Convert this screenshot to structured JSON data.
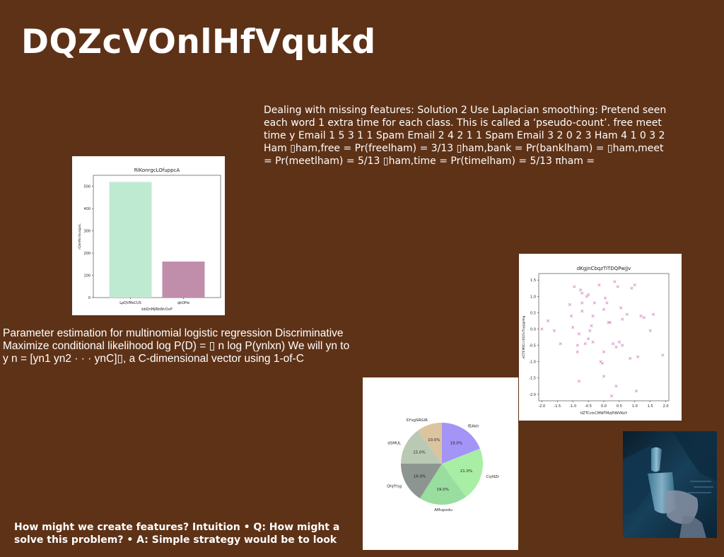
{
  "slide": {
    "title": "DQZcVOnlHfVqukd",
    "text_blocks": [
      "Dealing with missing features: Solution 2 Use Laplacian smoothing: Pretend seen each word 1 extra time for each class. This is called a ‘pseudo-count’. free meet time y Email 1 5 3 1 1 Spam Email 2 4 2 1 1 Spam Email 3 2 0 2 3 Ham 4 1 0 3 2 Ham ▯ham,free = Pr(freelham) = 3/13 ▯ham,bank = Pr(banklham) = ▯ham,meet = Pr(meetlham) = 5/13 ▯ham,time = Pr(timelham) = 5/13 πham =",
      "Parameter estimation for multinomial logistic regression Discriminative Maximize conditional likelihood log P(D) = ▯ n log P(ynlxn) We will yn to y n = [yn1 yn2 · · · ynC]▯, a C-dimensional vector using 1-of-C",
      "How might we create features? Intuition • Q: How might a solve this problem? • A: Simple strategy would be to look"
    ]
  },
  "chart_data": [
    {
      "type": "bar",
      "title": "RlKonrgcLOfuppcA",
      "xlabel": "bbQnMjRbWcOvP",
      "ylabel": "rQkHNcrbvaJpsL",
      "categories": [
        "LpQVMsCUS",
        "qkOPw"
      ],
      "values": [
        520,
        162
      ],
      "colors": [
        "#bfead2",
        "#c08dab"
      ],
      "ylim": [
        0,
        550
      ],
      "yticks": [
        0,
        100,
        200,
        300,
        400,
        500
      ]
    },
    {
      "type": "scatter",
      "title": "dKgjnCbqzTiTDQPwjJv",
      "xlabel": "tIZTCctcCMWTMzjPiWVKoY",
      "ylabel": "eQTEMKCcrXSOvTrvpJgHng",
      "marker": "x",
      "color": "#d98fc8",
      "xlim": [
        -2.1,
        2.1
      ],
      "ylim": [
        -2.2,
        1.7
      ],
      "xticks": [
        -2.0,
        -1.5,
        -1.0,
        -0.5,
        0.0,
        0.5,
        1.0,
        1.5,
        2.0
      ],
      "yticks": [
        -2.0,
        -1.5,
        -1.0,
        -0.5,
        0.0,
        0.5,
        1.0,
        1.5
      ],
      "points": [
        [
          -2.0,
          0.0
        ],
        [
          -1.8,
          0.25
        ],
        [
          -1.6,
          -0.05
        ],
        [
          -1.4,
          -0.45
        ],
        [
          -1.1,
          0.75
        ],
        [
          -1.05,
          0.4
        ],
        [
          -1.0,
          0.05
        ],
        [
          -0.95,
          1.3
        ],
        [
          -0.85,
          -0.7
        ],
        [
          -0.85,
          -0.5
        ],
        [
          -0.8,
          -0.15
        ],
        [
          -0.8,
          -1.6
        ],
        [
          -0.75,
          1.2
        ],
        [
          -0.7,
          0.8
        ],
        [
          -0.7,
          0.55
        ],
        [
          -0.7,
          1.1
        ],
        [
          -0.6,
          -0.45
        ],
        [
          -0.55,
          1.0
        ],
        [
          -0.5,
          1.05
        ],
        [
          -0.5,
          -0.3
        ],
        [
          -0.45,
          -0.05
        ],
        [
          -0.4,
          0.1
        ],
        [
          -0.35,
          0.4
        ],
        [
          -0.35,
          -0.4
        ],
        [
          -0.3,
          0.8
        ],
        [
          -0.15,
          1.35
        ],
        [
          -0.1,
          -1.0
        ],
        [
          -0.05,
          -1.05
        ],
        [
          0.0,
          0.6
        ],
        [
          0.0,
          -0.7
        ],
        [
          0.0,
          -1.45
        ],
        [
          0.05,
          0.95
        ],
        [
          0.1,
          0.8
        ],
        [
          0.15,
          0.2
        ],
        [
          0.2,
          0.2
        ],
        [
          0.25,
          -2.05
        ],
        [
          0.3,
          -0.45
        ],
        [
          0.35,
          1.45
        ],
        [
          0.4,
          -0.55
        ],
        [
          0.4,
          -1.75
        ],
        [
          0.45,
          1.3
        ],
        [
          0.5,
          -0.4
        ],
        [
          0.55,
          0.65
        ],
        [
          0.6,
          0.3
        ],
        [
          0.6,
          -0.5
        ],
        [
          0.75,
          0.45
        ],
        [
          0.85,
          -0.9
        ],
        [
          0.9,
          1.25
        ],
        [
          1.0,
          1.35
        ],
        [
          1.05,
          -1.9
        ],
        [
          1.1,
          -0.85
        ],
        [
          1.2,
          0.4
        ],
        [
          1.3,
          0.35
        ],
        [
          1.5,
          -0.05
        ],
        [
          1.6,
          0.45
        ],
        [
          1.9,
          -0.8
        ]
      ]
    },
    {
      "type": "pie",
      "start_angle_deg": 90,
      "direction": "clockwise",
      "slices": [
        {
          "label": "fEAkh",
          "value": 19.0,
          "pct_label": "19.0%",
          "color": "#a394f6"
        },
        {
          "label": "CiyNZr",
          "value": 21.0,
          "pct_label": "21.0%",
          "color": "#a8eea4"
        },
        {
          "label": "AMupxdu",
          "value": 19.0,
          "pct_label": "19.0%",
          "color": "#99dd9f"
        },
        {
          "label": "QhjfYsg",
          "value": 16.0,
          "pct_label": "16.0%",
          "color": "#8c9590"
        },
        {
          "label": "dSMUL",
          "value": 15.0,
          "pct_label": "15.0%",
          "color": "#bac9b4"
        },
        {
          "label": "SYxgSRGlR",
          "value": 10.0,
          "pct_label": "10.0%",
          "color": "#dbc49e"
        }
      ]
    }
  ],
  "photo": {
    "description_icon": "glass-pour-photo",
    "colors": {
      "dark": "#0d2436",
      "mid": "#1d4a66",
      "light": "#6aa9c8"
    }
  }
}
